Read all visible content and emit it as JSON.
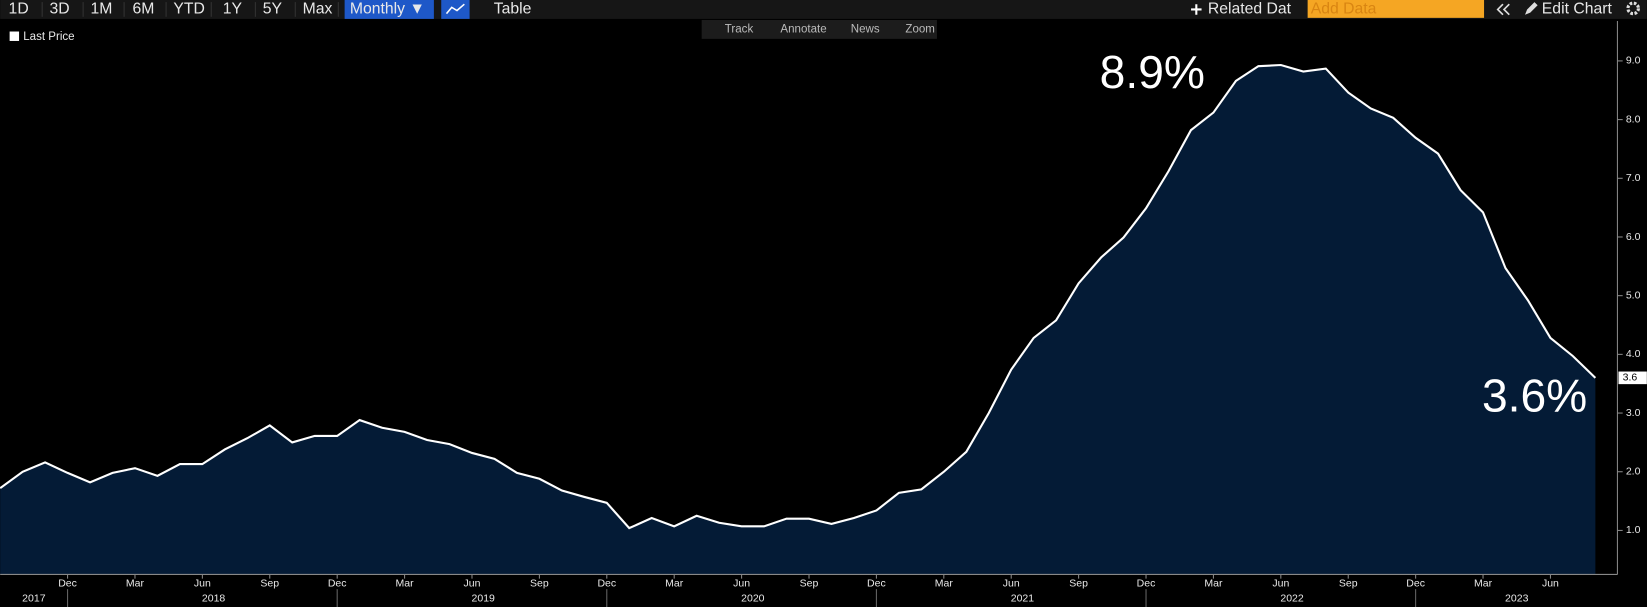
{
  "toolbar": {
    "ranges": [
      "1D",
      "3D",
      "1M",
      "6M",
      "YTD",
      "1Y",
      "5Y",
      "Max"
    ],
    "frequency": "Monthly ▼",
    "table": "Table",
    "related": "Related Dat",
    "add_data": "Add Data",
    "edit_chart": "Edit Chart"
  },
  "chart_tools": [
    "Track",
    "Annotate",
    "News",
    "Zoom"
  ],
  "annotations": [
    "8.9%",
    "3.6%"
  ],
  "chart_data": {
    "type": "area",
    "categories": [
      null,
      null,
      null,
      "Dec",
      null,
      null,
      "Mar",
      null,
      null,
      "Jun",
      null,
      null,
      "Sep",
      null,
      null,
      "Dec",
      null,
      null,
      "Mar",
      null,
      null,
      "Jun",
      null,
      null,
      "Sep",
      null,
      null,
      "Dec",
      null,
      null,
      "Mar",
      null,
      null,
      "Jun",
      null,
      null,
      "Sep",
      null,
      null,
      "Dec",
      null,
      null,
      "Mar",
      null,
      null,
      "Jun",
      null,
      null,
      "Sep",
      null,
      null,
      "Dec",
      null,
      null,
      "Mar",
      null,
      null,
      "Jun",
      null,
      null,
      "Sep",
      null,
      null,
      "Dec",
      null,
      null,
      "Mar",
      null,
      null,
      "Jun",
      null,
      null
    ],
    "x_groups": [
      "2017",
      "2018",
      "2019",
      "2020",
      "2021",
      "2022",
      "2023"
    ],
    "series": [
      {
        "name": "Last Price",
        "color": "#ffffff",
        "fill": "#041b36",
        "values": [
          1.72,
          2.0,
          2.16,
          1.98,
          1.82,
          1.98,
          2.06,
          1.93,
          2.13,
          2.13,
          2.38,
          2.57,
          2.79,
          2.5,
          2.61,
          2.61,
          2.88,
          2.75,
          2.68,
          2.54,
          2.47,
          2.32,
          2.22,
          1.98,
          1.88,
          1.68,
          1.57,
          1.47,
          1.04,
          1.21,
          1.07,
          1.25,
          1.13,
          1.07,
          1.07,
          1.2,
          1.2,
          1.11,
          1.21,
          1.34,
          1.64,
          1.7,
          2.0,
          2.34,
          3.0,
          3.74,
          4.28,
          4.58,
          5.21,
          5.65,
          5.99,
          6.49,
          7.12,
          7.82,
          8.12,
          8.66,
          8.91,
          8.93,
          8.82,
          8.87,
          8.46,
          8.19,
          8.03,
          7.69,
          7.42,
          6.8,
          6.42,
          5.47,
          4.92,
          4.28,
          3.97,
          3.6
        ]
      }
    ],
    "ylim": [
      0.25,
      9.68
    ],
    "yticks": [
      {
        "value": 1,
        "label": "1.0"
      },
      {
        "value": 2,
        "label": "2.0"
      },
      {
        "value": 3,
        "label": "3.0"
      },
      {
        "value": 4,
        "label": "4.0"
      },
      {
        "value": 5,
        "label": "5.0"
      },
      {
        "value": 6,
        "label": "6.0"
      },
      {
        "value": 7,
        "label": "7.0"
      },
      {
        "value": 8,
        "label": "8.0"
      },
      {
        "value": 9,
        "label": "9.0"
      }
    ],
    "legend": "top-left",
    "grid": false
  }
}
